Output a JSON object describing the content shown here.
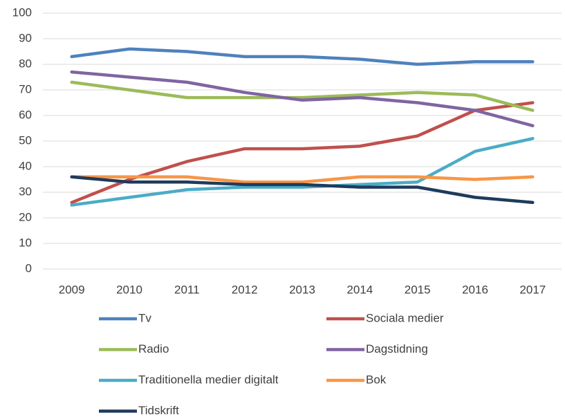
{
  "chart_data": {
    "type": "line",
    "categories": [
      "2009",
      "2010",
      "2011",
      "2012",
      "2013",
      "2014",
      "2015",
      "2016",
      "2017"
    ],
    "series": [
      {
        "name": "Tv",
        "color": "#4f81bd",
        "values": [
          83,
          86,
          85,
          83,
          83,
          82,
          80,
          81,
          81
        ]
      },
      {
        "name": "Sociala medier",
        "color": "#c0504d",
        "values": [
          26,
          35,
          42,
          47,
          47,
          48,
          52,
          62,
          65
        ]
      },
      {
        "name": "Radio",
        "color": "#9bbb59",
        "values": [
          73,
          70,
          67,
          67,
          67,
          68,
          69,
          68,
          62
        ]
      },
      {
        "name": "Dagstidning",
        "color": "#8064a2",
        "values": [
          77,
          75,
          73,
          69,
          66,
          67,
          65,
          62,
          56
        ]
      },
      {
        "name": "Traditionella medier digitalt",
        "color": "#4bacc6",
        "values": [
          25,
          28,
          31,
          32,
          32,
          33,
          34,
          46,
          51
        ]
      },
      {
        "name": "Bok",
        "color": "#f79646",
        "values": [
          36,
          36,
          36,
          34,
          34,
          36,
          36,
          35,
          36
        ]
      },
      {
        "name": "Tidskrift",
        "color": "#1f3b5c",
        "values": [
          36,
          34,
          34,
          33,
          33,
          32,
          32,
          28,
          26
        ]
      }
    ],
    "ylim": [
      0,
      100
    ],
    "yticks": [
      0,
      10,
      20,
      30,
      40,
      50,
      60,
      70,
      80,
      90,
      100
    ],
    "grid": true
  }
}
